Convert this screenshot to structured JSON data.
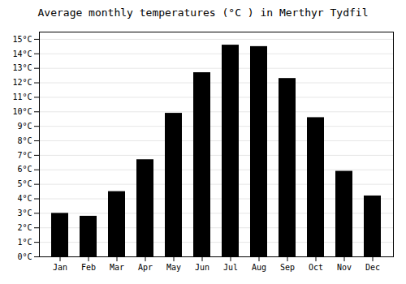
{
  "chart_data": {
    "type": "bar",
    "title": "Average monthly temperatures (°C ) in Merthyr Tydfil",
    "categories": [
      "Jan",
      "Feb",
      "Mar",
      "Apr",
      "May",
      "Jun",
      "Jul",
      "Aug",
      "Sep",
      "Oct",
      "Nov",
      "Dec"
    ],
    "values": [
      3.0,
      2.8,
      4.5,
      6.7,
      9.9,
      12.7,
      14.6,
      14.5,
      12.3,
      9.6,
      5.9,
      4.2
    ],
    "ylim": [
      0,
      15.5
    ],
    "yticks": [
      {
        "value": 0,
        "label": "0°C"
      },
      {
        "value": 1,
        "label": "1°C"
      },
      {
        "value": 2,
        "label": "2°C"
      },
      {
        "value": 3,
        "label": "3°C"
      },
      {
        "value": 4,
        "label": "4°C"
      },
      {
        "value": 5,
        "label": "5°C"
      },
      {
        "value": 6,
        "label": "6°C"
      },
      {
        "value": 7,
        "label": "7°C"
      },
      {
        "value": 8,
        "label": "8°C"
      },
      {
        "value": 9,
        "label": "9°C"
      },
      {
        "value": 10,
        "label": "10°C"
      },
      {
        "value": 11,
        "label": "11°C"
      },
      {
        "value": 12,
        "label": "12°C"
      },
      {
        "value": 13,
        "label": "13°C"
      },
      {
        "value": 14,
        "label": "14°C"
      },
      {
        "value": 15,
        "label": "15°C"
      }
    ],
    "grid": true
  }
}
